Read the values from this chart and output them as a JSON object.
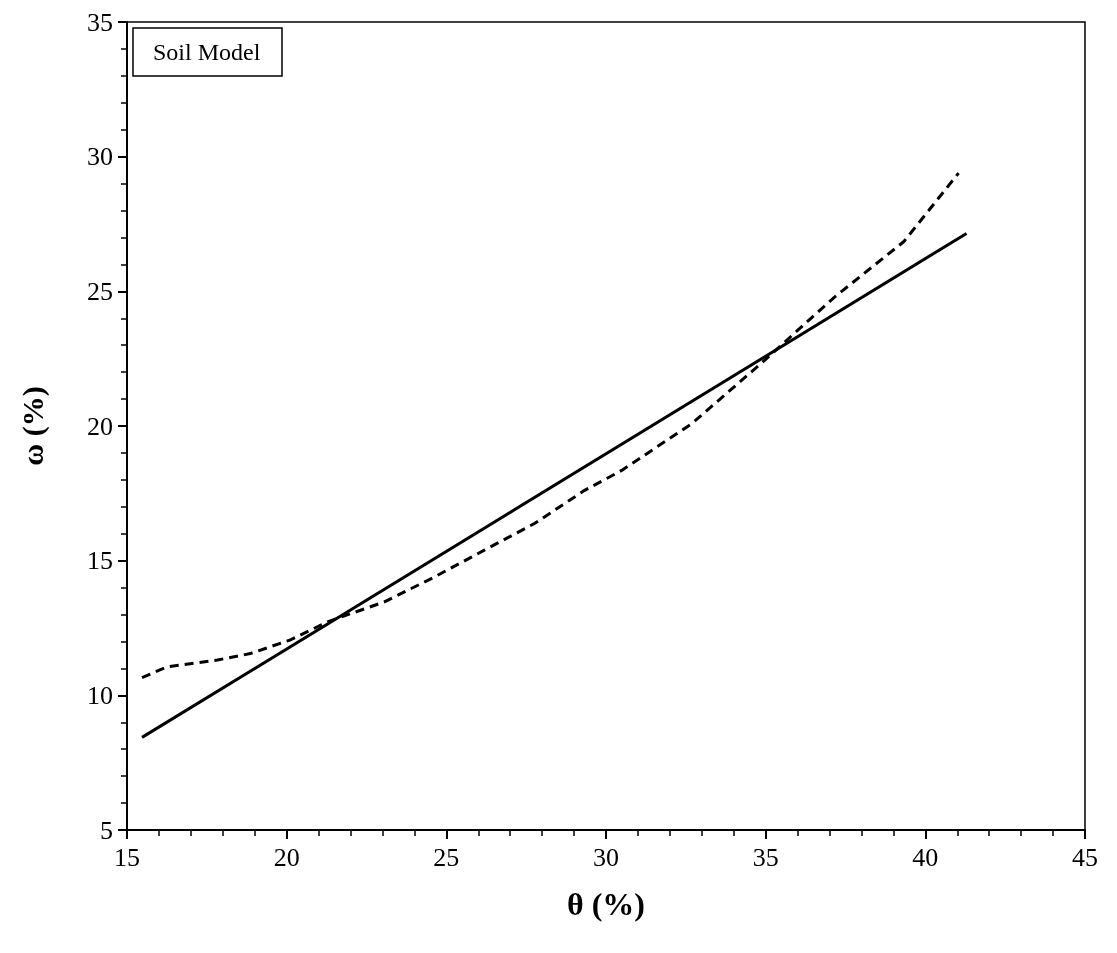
{
  "chart_data": {
    "type": "line",
    "title": "Soil Model",
    "xlabel": "θ (%)",
    "ylabel": "ω (%)",
    "xlim": [
      15,
      45
    ],
    "xticks": [
      15,
      20,
      25,
      30,
      35,
      40,
      45
    ],
    "ylim": [
      5,
      35
    ],
    "yticks": [
      5,
      10,
      15,
      20,
      25,
      30,
      35
    ],
    "marker": "none",
    "series": [
      {
        "color": "#000000",
        "line_style": "solid",
        "x": [
          15.47,
          41.29
        ],
        "values": [
          8.44,
          27.15
        ]
      },
      {
        "color": "#000000",
        "line_style": "dashed",
        "x": [
          15.47,
          16.26,
          17.83,
          18.86,
          20.1,
          21.28,
          23.06,
          24.62,
          26.19,
          27.76,
          29.33,
          30.49,
          32.7,
          34.92,
          37.12,
          39.33,
          41.04
        ],
        "values": [
          10.66,
          11.06,
          11.31,
          11.55,
          12.05,
          12.73,
          13.47,
          14.39,
          15.39,
          16.38,
          17.61,
          18.35,
          20.1,
          22.39,
          24.75,
          26.85,
          29.39
        ]
      }
    ]
  }
}
